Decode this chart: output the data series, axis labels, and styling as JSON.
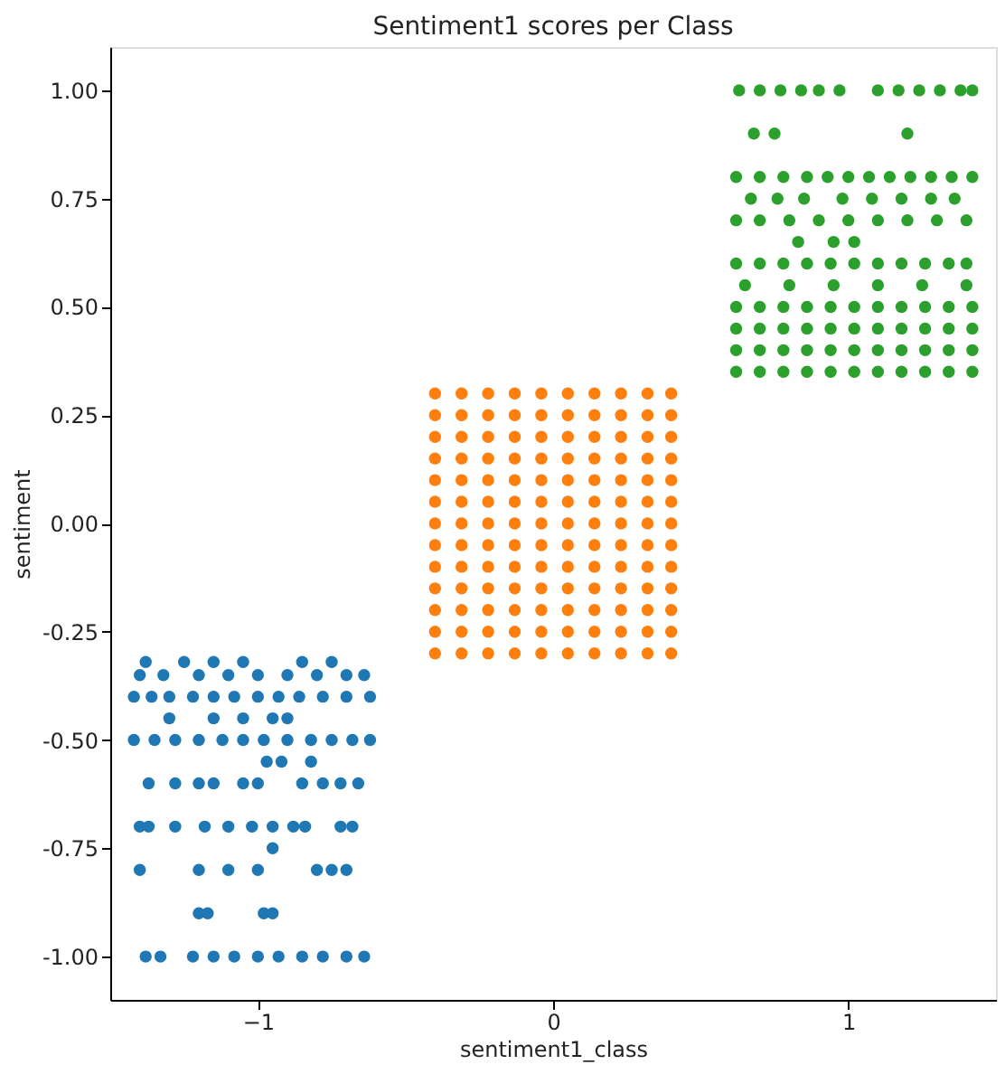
{
  "chart_data": {
    "type": "scatter",
    "title": "Sentiment1 scores per Class",
    "xlabel": "sentiment1_class",
    "ylabel": "sentiment",
    "xlim": [
      -1.5,
      1.5
    ],
    "xticks": [
      -1,
      0,
      1
    ],
    "ylim": [
      -1.1,
      1.1
    ],
    "yticks": [
      {
        "value": -1,
        "label": "-1.00"
      },
      {
        "value": -0.75,
        "label": "-0.75"
      },
      {
        "value": -0.5,
        "label": "-0.50"
      },
      {
        "value": -0.25,
        "label": "-0.25"
      },
      {
        "value": 0,
        "label": "0.00"
      },
      {
        "value": 0.25,
        "label": "0.25"
      },
      {
        "value": 0.5,
        "label": "0.50"
      },
      {
        "value": 0.75,
        "label": "0.75"
      },
      {
        "value": 1,
        "label": "1.00"
      }
    ],
    "grid": false,
    "legend": false,
    "marker": "circle",
    "series": [
      {
        "color": "#1f77b4",
        "x": [
          -1.38,
          -1.33,
          -1.22,
          -1.15,
          -1.08,
          -1.0,
          -0.93,
          -0.85,
          -0.78,
          -0.7,
          -0.64,
          -1.2,
          -1.17,
          -0.98,
          -0.95,
          -1.4,
          -1.2,
          -1.1,
          -1.0,
          -0.8,
          -0.75,
          -0.7,
          -0.95,
          -1.4,
          -1.37,
          -1.28,
          -1.18,
          -1.1,
          -1.02,
          -0.95,
          -0.88,
          -0.84,
          -0.72,
          -0.68,
          -1.37,
          -1.28,
          -1.2,
          -1.15,
          -1.05,
          -1.0,
          -0.85,
          -0.78,
          -0.72,
          -0.66,
          -0.97,
          -0.92,
          -0.82,
          -1.42,
          -1.35,
          -1.28,
          -1.2,
          -1.12,
          -1.05,
          -0.98,
          -0.9,
          -0.82,
          -0.75,
          -0.68,
          -0.62,
          -1.3,
          -1.15,
          -1.05,
          -0.95,
          -0.9,
          -1.42,
          -1.36,
          -1.3,
          -1.22,
          -1.15,
          -1.08,
          -1.0,
          -0.93,
          -0.86,
          -0.78,
          -0.7,
          -0.62,
          -1.4,
          -1.32,
          -1.2,
          -1.1,
          -1.0,
          -0.9,
          -0.8,
          -0.7,
          -0.64,
          -1.38,
          -1.25,
          -1.15,
          -1.05,
          -0.85,
          -0.75
        ],
        "values": [
          -1.0,
          -1.0,
          -1.0,
          -1.0,
          -1.0,
          -1.0,
          -1.0,
          -1.0,
          -1.0,
          -1.0,
          -1.0,
          -0.9,
          -0.9,
          -0.9,
          -0.9,
          -0.8,
          -0.8,
          -0.8,
          -0.8,
          -0.8,
          -0.8,
          -0.8,
          -0.75,
          -0.7,
          -0.7,
          -0.7,
          -0.7,
          -0.7,
          -0.7,
          -0.7,
          -0.7,
          -0.7,
          -0.7,
          -0.7,
          -0.6,
          -0.6,
          -0.6,
          -0.6,
          -0.6,
          -0.6,
          -0.6,
          -0.6,
          -0.6,
          -0.6,
          -0.55,
          -0.55,
          -0.55,
          -0.5,
          -0.5,
          -0.5,
          -0.5,
          -0.5,
          -0.5,
          -0.5,
          -0.5,
          -0.5,
          -0.5,
          -0.5,
          -0.5,
          -0.45,
          -0.45,
          -0.45,
          -0.45,
          -0.45,
          -0.4,
          -0.4,
          -0.4,
          -0.4,
          -0.4,
          -0.4,
          -0.4,
          -0.4,
          -0.4,
          -0.4,
          -0.4,
          -0.4,
          -0.35,
          -0.35,
          -0.35,
          -0.35,
          -0.35,
          -0.35,
          -0.35,
          -0.35,
          -0.35,
          -0.32,
          -0.32,
          -0.32,
          -0.32,
          -0.32,
          -0.32
        ]
      },
      {
        "color": "#ff7f0e",
        "x": [
          -0.4,
          -0.31,
          -0.22,
          -0.13,
          -0.04,
          0.05,
          0.14,
          0.23,
          0.32,
          0.4,
          -0.4,
          -0.31,
          -0.22,
          -0.13,
          -0.04,
          0.05,
          0.14,
          0.23,
          0.32,
          0.4,
          -0.4,
          -0.31,
          -0.22,
          -0.13,
          -0.04,
          0.05,
          0.14,
          0.23,
          0.32,
          0.4,
          -0.4,
          -0.31,
          -0.22,
          -0.13,
          -0.04,
          0.05,
          0.14,
          0.23,
          0.32,
          0.4,
          -0.4,
          -0.31,
          -0.22,
          -0.13,
          -0.04,
          0.05,
          0.14,
          0.23,
          0.32,
          0.4,
          -0.4,
          -0.31,
          -0.22,
          -0.13,
          -0.04,
          0.05,
          0.14,
          0.23,
          0.32,
          0.4,
          -0.4,
          -0.31,
          -0.22,
          -0.13,
          -0.04,
          0.05,
          0.14,
          0.23,
          0.32,
          0.4,
          -0.4,
          -0.31,
          -0.22,
          -0.13,
          -0.04,
          0.05,
          0.14,
          0.23,
          0.32,
          0.4,
          -0.4,
          -0.31,
          -0.22,
          -0.13,
          -0.04,
          0.05,
          0.14,
          0.23,
          0.32,
          0.4,
          -0.4,
          -0.31,
          -0.22,
          -0.13,
          -0.04,
          0.05,
          0.14,
          0.23,
          0.32,
          0.4,
          -0.4,
          -0.31,
          -0.22,
          -0.13,
          -0.04,
          0.05,
          0.14,
          0.23,
          0.32,
          0.4,
          -0.4,
          -0.31,
          -0.22,
          -0.13,
          -0.04,
          0.05,
          0.14,
          0.23,
          0.32,
          0.4,
          -0.4,
          -0.31,
          -0.22,
          -0.13,
          -0.04,
          0.05,
          0.14,
          0.23,
          0.32,
          0.4
        ],
        "values": [
          -0.3,
          -0.3,
          -0.3,
          -0.3,
          -0.3,
          -0.3,
          -0.3,
          -0.3,
          -0.3,
          -0.3,
          -0.25,
          -0.25,
          -0.25,
          -0.25,
          -0.25,
          -0.25,
          -0.25,
          -0.25,
          -0.25,
          -0.25,
          -0.2,
          -0.2,
          -0.2,
          -0.2,
          -0.2,
          -0.2,
          -0.2,
          -0.2,
          -0.2,
          -0.2,
          -0.15,
          -0.15,
          -0.15,
          -0.15,
          -0.15,
          -0.15,
          -0.15,
          -0.15,
          -0.15,
          -0.15,
          -0.1,
          -0.1,
          -0.1,
          -0.1,
          -0.1,
          -0.1,
          -0.1,
          -0.1,
          -0.1,
          -0.1,
          -0.05,
          -0.05,
          -0.05,
          -0.05,
          -0.05,
          -0.05,
          -0.05,
          -0.05,
          -0.05,
          -0.05,
          0.0,
          0.0,
          0.0,
          0.0,
          0.0,
          0.0,
          0.0,
          0.0,
          0.0,
          0.0,
          0.05,
          0.05,
          0.05,
          0.05,
          0.05,
          0.05,
          0.05,
          0.05,
          0.05,
          0.05,
          0.1,
          0.1,
          0.1,
          0.1,
          0.1,
          0.1,
          0.1,
          0.1,
          0.1,
          0.1,
          0.15,
          0.15,
          0.15,
          0.15,
          0.15,
          0.15,
          0.15,
          0.15,
          0.15,
          0.15,
          0.2,
          0.2,
          0.2,
          0.2,
          0.2,
          0.2,
          0.2,
          0.2,
          0.2,
          0.2,
          0.25,
          0.25,
          0.25,
          0.25,
          0.25,
          0.25,
          0.25,
          0.25,
          0.25,
          0.25,
          0.3,
          0.3,
          0.3,
          0.3,
          0.3,
          0.3,
          0.3,
          0.3,
          0.3,
          0.3
        ]
      },
      {
        "color": "#2ca02c",
        "x": [
          0.63,
          0.7,
          0.77,
          0.84,
          0.9,
          0.97,
          1.1,
          1.17,
          1.24,
          1.31,
          1.38,
          1.42,
          0.68,
          0.75,
          1.2,
          0.62,
          0.7,
          0.78,
          0.86,
          0.93,
          1.0,
          1.07,
          1.14,
          1.21,
          1.28,
          1.35,
          1.42,
          0.67,
          0.76,
          0.85,
          0.98,
          1.08,
          1.18,
          1.28,
          1.36,
          0.62,
          0.7,
          0.8,
          0.9,
          1.0,
          1.1,
          1.2,
          1.3,
          1.4,
          0.83,
          0.95,
          1.02,
          0.62,
          0.7,
          0.78,
          0.86,
          0.94,
          1.02,
          1.1,
          1.18,
          1.26,
          1.34,
          1.4,
          0.65,
          0.8,
          0.95,
          1.1,
          1.25,
          1.4,
          0.62,
          0.7,
          0.78,
          0.86,
          0.94,
          1.02,
          1.1,
          1.18,
          1.26,
          1.34,
          1.42,
          0.62,
          0.7,
          0.78,
          0.86,
          0.94,
          1.02,
          1.1,
          1.18,
          1.26,
          1.34,
          1.42,
          0.62,
          0.7,
          0.78,
          0.86,
          0.94,
          1.02,
          1.1,
          1.18,
          1.26,
          1.34,
          1.42,
          0.62,
          0.7,
          0.78,
          0.86,
          0.94,
          1.02,
          1.1,
          1.18,
          1.26,
          1.34,
          1.42
        ],
        "values": [
          1.0,
          1.0,
          1.0,
          1.0,
          1.0,
          1.0,
          1.0,
          1.0,
          1.0,
          1.0,
          1.0,
          1.0,
          0.9,
          0.9,
          0.9,
          0.8,
          0.8,
          0.8,
          0.8,
          0.8,
          0.8,
          0.8,
          0.8,
          0.8,
          0.8,
          0.8,
          0.8,
          0.75,
          0.75,
          0.75,
          0.75,
          0.75,
          0.75,
          0.75,
          0.75,
          0.7,
          0.7,
          0.7,
          0.7,
          0.7,
          0.7,
          0.7,
          0.7,
          0.7,
          0.65,
          0.65,
          0.65,
          0.6,
          0.6,
          0.6,
          0.6,
          0.6,
          0.6,
          0.6,
          0.6,
          0.6,
          0.6,
          0.6,
          0.55,
          0.55,
          0.55,
          0.55,
          0.55,
          0.55,
          0.5,
          0.5,
          0.5,
          0.5,
          0.5,
          0.5,
          0.5,
          0.5,
          0.5,
          0.5,
          0.5,
          0.45,
          0.45,
          0.45,
          0.45,
          0.45,
          0.45,
          0.45,
          0.45,
          0.45,
          0.45,
          0.45,
          0.4,
          0.4,
          0.4,
          0.4,
          0.4,
          0.4,
          0.4,
          0.4,
          0.4,
          0.4,
          0.4,
          0.35,
          0.35,
          0.35,
          0.35,
          0.35,
          0.35,
          0.35,
          0.35,
          0.35,
          0.35,
          0.35
        ]
      }
    ]
  }
}
